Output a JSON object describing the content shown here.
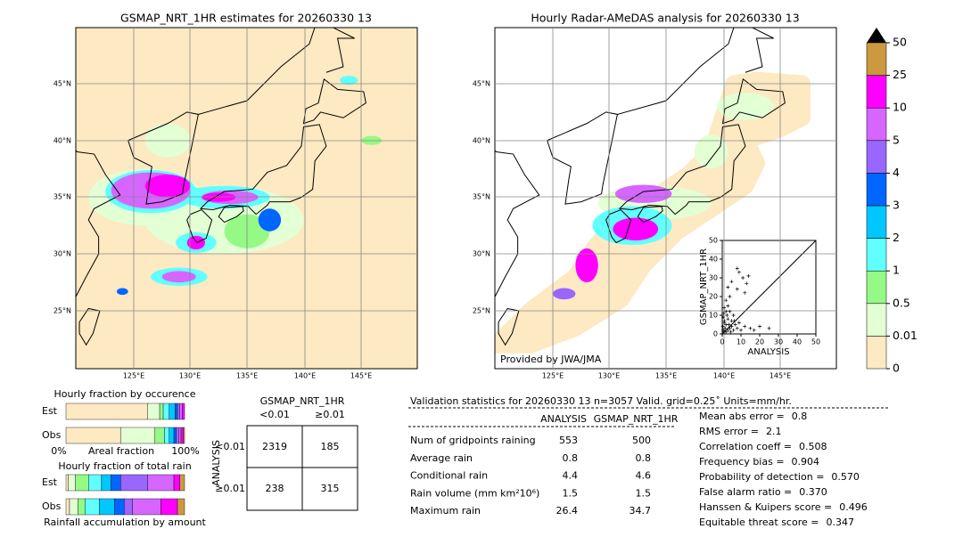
{
  "left_map": {
    "title": "GSMAP_NRT_1HR estimates for 20260330 13",
    "lat_labels": [
      "45°N",
      "40°N",
      "35°N",
      "30°N",
      "25°N"
    ],
    "lon_labels": [
      "125°E",
      "130°E",
      "135°E",
      "140°E",
      "145°E"
    ]
  },
  "right_map": {
    "title": "Hourly Radar-AMeDAS analysis for 20260330 13",
    "lat_labels": [
      "45°N",
      "40°N",
      "35°N",
      "30°N",
      "25°N"
    ],
    "lon_labels": [
      "125°E",
      "130°E",
      "135°E",
      "140°E",
      "145°E"
    ],
    "credit": "Provided by JWA/JMA"
  },
  "scatter": {
    "xlabel": "ANALYSIS",
    "ylabel": "GSMAP_NRT_1HR",
    "lim": [
      0,
      50
    ],
    "ticks": [
      0,
      10,
      20,
      30,
      40,
      50
    ],
    "points": [
      [
        0.5,
        2
      ],
      [
        1,
        1
      ],
      [
        1.5,
        3
      ],
      [
        2,
        1
      ],
      [
        2,
        5
      ],
      [
        3,
        2
      ],
      [
        3,
        8
      ],
      [
        1,
        6
      ],
      [
        0.5,
        9
      ],
      [
        4,
        3
      ],
      [
        4,
        12
      ],
      [
        5,
        4
      ],
      [
        5,
        7
      ],
      [
        6,
        2
      ],
      [
        6,
        10
      ],
      [
        2,
        12
      ],
      [
        1,
        14
      ],
      [
        3,
        15
      ],
      [
        7,
        5
      ],
      [
        8,
        3
      ],
      [
        9,
        6
      ],
      [
        10,
        2
      ],
      [
        12,
        4
      ],
      [
        15,
        3
      ],
      [
        17,
        2
      ],
      [
        20,
        4
      ],
      [
        25,
        3
      ],
      [
        2,
        18
      ],
      [
        4,
        20
      ],
      [
        3,
        25
      ],
      [
        5,
        28
      ],
      [
        8,
        24
      ],
      [
        12,
        22
      ],
      [
        13,
        27
      ],
      [
        9,
        33
      ],
      [
        11,
        30
      ],
      [
        14,
        31
      ],
      [
        8,
        35
      ],
      [
        0.3,
        4
      ],
      [
        1.2,
        7
      ],
      [
        2.5,
        10
      ],
      [
        0.8,
        11
      ],
      [
        4.5,
        1
      ],
      [
        6.5,
        7
      ],
      [
        3.5,
        5
      ]
    ]
  },
  "colorbar": {
    "levels": [
      0,
      0.01,
      0.5,
      1,
      2,
      3,
      4,
      5,
      10,
      25,
      50
    ],
    "colors": [
      "#fde9c2",
      "#e3ffd4",
      "#95f985",
      "#61ffff",
      "#00c7ff",
      "#0066ff",
      "#9966ff",
      "#d666ff",
      "#ff00ff",
      "#cc9940"
    ],
    "extend_color": "#000000"
  },
  "occurrence": {
    "title": "Hourly fraction by occurence",
    "rows": [
      {
        "label": "Est",
        "fractions": [
          69,
          10,
          3,
          5,
          5,
          2,
          2,
          2,
          2,
          0
        ]
      },
      {
        "label": "Obs",
        "fractions": [
          46,
          29,
          8,
          4,
          4,
          2,
          2,
          2,
          2,
          1
        ]
      }
    ],
    "axis_left": "0%",
    "axis_label": "Areal fraction",
    "axis_right": "100%"
  },
  "total_rain": {
    "title": "Hourly fraction of total rain",
    "rows": [
      {
        "label": "Est",
        "fractions": [
          2,
          6,
          11,
          11,
          8,
          8,
          23,
          22,
          5,
          4
        ]
      },
      {
        "label": "Obs",
        "fractions": [
          3,
          7,
          6,
          12,
          13,
          8,
          7,
          24,
          14,
          6
        ]
      }
    ],
    "footer": "Rainfall accumulation by amount"
  },
  "contingency": {
    "title": "GSMAP_NRT_1HR",
    "col_labels": [
      "<0.01",
      "≥0.01"
    ],
    "row_title": "ANALYSIS",
    "row_labels": [
      "<0.01",
      "≥0.01"
    ],
    "cells": [
      [
        2319,
        185
      ],
      [
        238,
        315
      ]
    ]
  },
  "validation": {
    "header": "Validation statistics for 20260330 13  n=3057 Valid. grid=0.25˚ Units=mm/hr.",
    "columns": [
      "ANALYSIS",
      "GSMAP_NRT_1HR"
    ],
    "rows": [
      {
        "label": "Num of gridpoints raining",
        "values": [
          553,
          500
        ]
      },
      {
        "label": "Average rain",
        "values": [
          0.8,
          0.8
        ]
      },
      {
        "label": "Conditional rain",
        "values": [
          4.4,
          4.6
        ]
      },
      {
        "label": "Rain volume (mm km²10⁶)",
        "values": [
          1.5,
          1.5
        ]
      },
      {
        "label": "Maximum rain",
        "values": [
          26.4,
          34.7
        ]
      }
    ],
    "scores": [
      {
        "label": "Mean abs error =",
        "value": "0.8"
      },
      {
        "label": "RMS error =",
        "value": "2.1"
      },
      {
        "label": "Correlation coeff =",
        "value": "0.508"
      },
      {
        "label": "Frequency bias =",
        "value": "0.904"
      },
      {
        "label": "Probability of detection =",
        "value": "0.570"
      },
      {
        "label": "False alarm ratio =",
        "value": "0.370"
      },
      {
        "label": "Hanssen & Kuipers score =",
        "value": "0.496"
      },
      {
        "label": "Equitable threat score =",
        "value": "0.347"
      }
    ]
  }
}
